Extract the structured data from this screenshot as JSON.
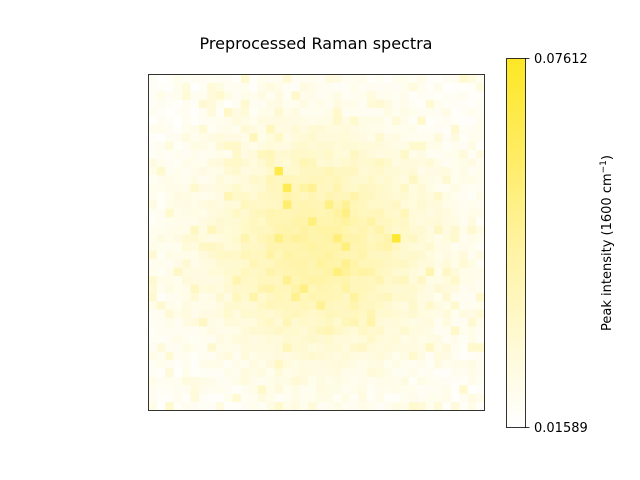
{
  "chart_data": {
    "type": "heatmap",
    "title": "Preprocessed Raman spectra",
    "colorbar": {
      "label_main": "Peak intensity (1600 cm",
      "label_sup": "−1",
      "label_close": ")",
      "vmin": 0.01589,
      "vmax": 0.07612,
      "tick_labels": [
        "0.07612",
        "0.01589"
      ]
    },
    "colormap": [
      "#ffffff",
      "#fff9d0",
      "#fff3a0",
      "#ffec60",
      "#fde725"
    ],
    "grid": {
      "rows": 40,
      "cols": 40
    },
    "axes": {
      "xticks": false,
      "yticks": false
    }
  }
}
